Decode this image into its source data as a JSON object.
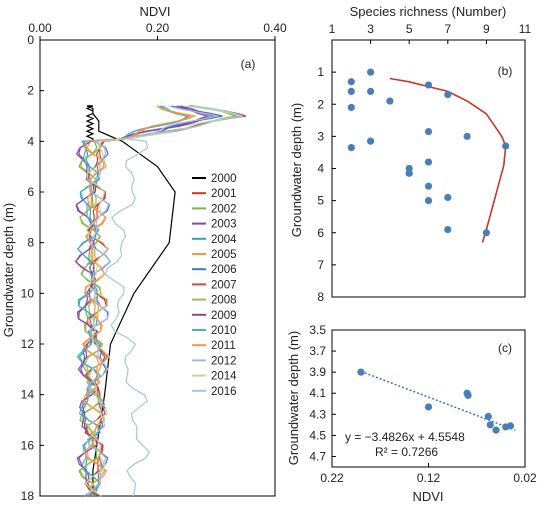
{
  "chart_data": [
    {
      "id": "a",
      "type": "line",
      "panel_label": "(a)",
      "xlabel": "NDVI",
      "ylabel": "Groundwater depth (m)",
      "x_axis_position": "top",
      "xlim": [
        0,
        0.4
      ],
      "ylim": [
        0,
        18
      ],
      "y_inverted": true,
      "xticks": [
        "0.00",
        "0.20",
        "0.40"
      ],
      "yticks": [
        "0",
        "2",
        "4",
        "6",
        "8",
        "10",
        "12",
        "14",
        "16",
        "18"
      ],
      "grid": false,
      "legend_position": "right",
      "series": [
        {
          "name": "2000",
          "color": "#000000",
          "x": [
            0.09,
            0.09,
            0.1,
            0.11,
            0.12,
            0.16,
            0.22,
            0.23,
            0.2,
            0.14,
            0.1,
            0.1,
            0.09,
            0.09,
            0.09,
            0.08,
            0.09,
            0.08,
            0.09,
            0.09,
            0.08,
            0.09,
            0.08,
            0.09,
            0.08,
            0.09,
            0.08,
            0.09,
            0.08,
            0.09,
            0.09
          ],
          "y": [
            18.0,
            17.0,
            15.5,
            14.0,
            12.0,
            10.0,
            8.0,
            6.0,
            5.0,
            4.0,
            3.6,
            3.2,
            2.9,
            2.8,
            2.7,
            2.6,
            2.6,
            2.7,
            2.8,
            2.9,
            3.0,
            3.1,
            3.2,
            3.3,
            3.4,
            3.5,
            3.6,
            3.7,
            3.8,
            3.9,
            4.0
          ]
        },
        {
          "name": "2001",
          "color": "#c0392b",
          "x": [],
          "y": []
        },
        {
          "name": "2002",
          "color": "#7cb342",
          "x": [],
          "y": []
        },
        {
          "name": "2003",
          "color": "#7b4ea3",
          "x": [],
          "y": []
        },
        {
          "name": "2004",
          "color": "#2aa6b5",
          "x": [],
          "y": []
        },
        {
          "name": "2005",
          "color": "#f39c34",
          "x": [],
          "y": []
        },
        {
          "name": "2006",
          "color": "#3b78c4",
          "x": [],
          "y": []
        },
        {
          "name": "2007",
          "color": "#d64541",
          "x": [],
          "y": []
        },
        {
          "name": "2008",
          "color": "#9bbb59",
          "x": [],
          "y": []
        },
        {
          "name": "2009",
          "color": "#8e44ad",
          "x": [],
          "y": []
        },
        {
          "name": "2010",
          "color": "#4bacc6",
          "x": [],
          "y": []
        },
        {
          "name": "2011",
          "color": "#f79646",
          "x": [],
          "y": []
        },
        {
          "name": "2012",
          "color": "#a9b7e0",
          "x": [],
          "y": []
        },
        {
          "name": "2014",
          "color": "#c4d79b",
          "x": [],
          "y": []
        },
        {
          "name": "2016",
          "color": "#9fc7e6",
          "x": [],
          "y": []
        }
      ]
    },
    {
      "id": "b",
      "type": "scatter",
      "panel_label": "(b)",
      "xlabel": "Species richness (Number)",
      "ylabel": "Groundwater depth (m)",
      "x_axis_position": "top",
      "xlim": [
        1,
        11
      ],
      "ylim": [
        0,
        8
      ],
      "y_inverted": true,
      "xticks": [
        "1",
        "3",
        "5",
        "7",
        "9",
        "11"
      ],
      "yticks": [
        "1",
        "2",
        "3",
        "4",
        "5",
        "6",
        "7",
        "8"
      ],
      "grid": false,
      "points_color": "#4a7ebb",
      "curve_color": "#c0392b",
      "x": [
        2,
        2,
        2,
        2,
        3,
        3,
        3,
        4,
        5,
        5,
        6,
        6,
        6,
        6,
        6,
        7,
        7,
        7,
        8,
        9,
        10
      ],
      "y": [
        1.3,
        1.6,
        2.1,
        3.35,
        1.0,
        1.6,
        3.15,
        1.9,
        4.0,
        4.15,
        1.4,
        2.85,
        3.8,
        4.55,
        5.0,
        1.7,
        4.9,
        5.9,
        3.0,
        6.0,
        3.3
      ],
      "fit_curve": {
        "x": [
          4.0,
          5.0,
          6.0,
          7.0,
          8.0,
          9.0,
          9.8,
          10.0,
          9.9,
          9.5,
          9.0,
          8.8
        ],
        "y": [
          1.2,
          1.3,
          1.45,
          1.6,
          1.9,
          2.3,
          3.0,
          3.3,
          3.9,
          4.8,
          5.9,
          6.3
        ]
      }
    },
    {
      "id": "c",
      "type": "scatter",
      "panel_label": "(c)",
      "xlabel": "NDVI",
      "ylabel": "Groundwater depth (m)",
      "xlim": [
        0.22,
        0.02
      ],
      "ylim": [
        3.5,
        4.8
      ],
      "y_inverted": true,
      "xticks": [
        "0.22",
        "0.12",
        "0.02"
      ],
      "yticks": [
        "3.5",
        "3.7",
        "3.9",
        "4.1",
        "4.3",
        "4.5",
        "4.7"
      ],
      "grid": false,
      "points_color": "#4a7ebb",
      "trend_color": "#2e6db4",
      "x": [
        0.19,
        0.12,
        0.08,
        0.079,
        0.058,
        0.056,
        0.05,
        0.04,
        0.035
      ],
      "y": [
        3.9,
        4.23,
        4.1,
        4.12,
        4.32,
        4.4,
        4.45,
        4.42,
        4.41
      ],
      "trendline": {
        "slope": -3.4826,
        "intercept": 4.5548,
        "x_range": [
          0.19,
          0.03
        ]
      },
      "equation": "y = −3.4826x + 4.5548",
      "r_squared": "R² = 0.7266"
    }
  ]
}
